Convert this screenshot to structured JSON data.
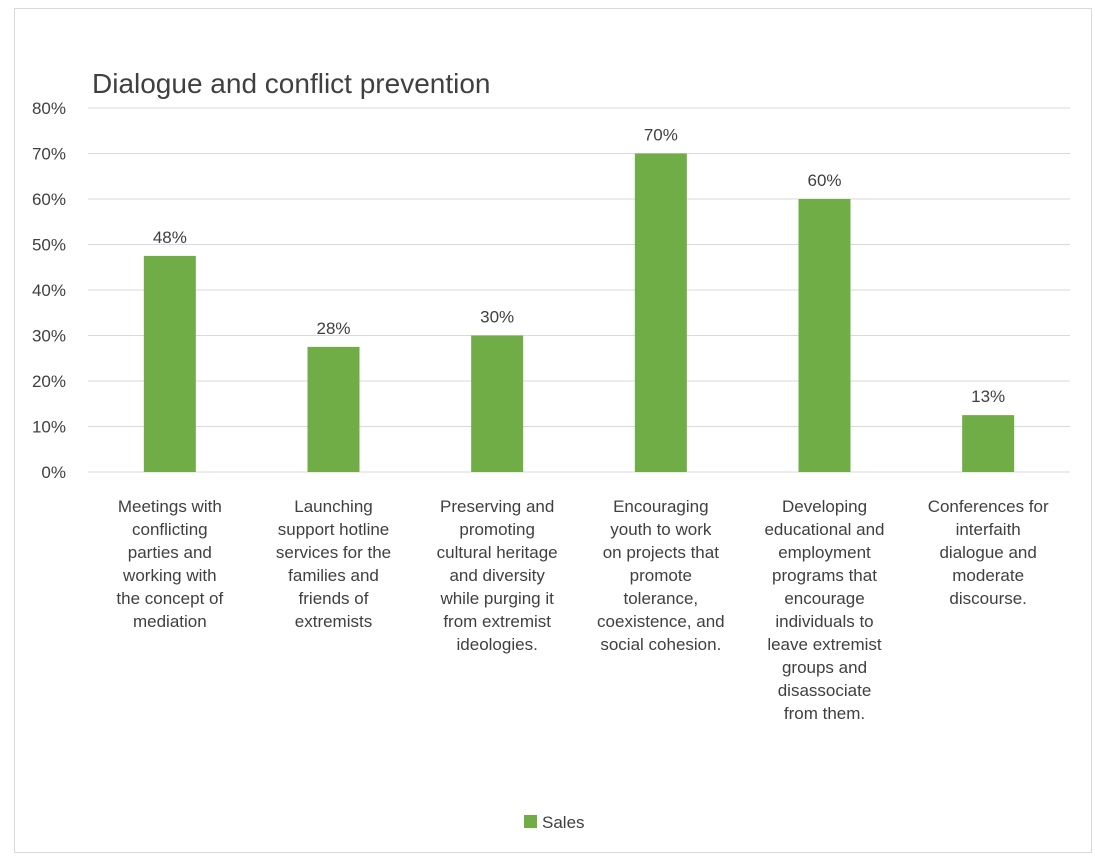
{
  "chart_data": {
    "type": "bar",
    "title": "Dialogue and conflict prevention",
    "categories": [
      "Meetings with conflicting parties and working with the concept of mediation",
      "Launching support hotline services for the families and friends of extremists",
      "Preserving and promoting cultural heritage and diversity while purging it from extremist ideologies.",
      "Encouraging youth to work on projects that promote tolerance, coexistence, and social cohesion.",
      "Developing educational and employment programs that encourage individuals to leave extremist groups and disassociate from them.",
      "Conferences for interfaith dialogue and moderate discourse."
    ],
    "category_lines": [
      [
        "Meetings with",
        "conflicting",
        "parties and",
        "working with",
        "the concept of",
        "mediation"
      ],
      [
        "Launching",
        "support hotline",
        "services for the",
        "families and",
        "friends of",
        "extremists"
      ],
      [
        "Preserving and",
        "promoting",
        "cultural heritage",
        "and diversity",
        "while purging it",
        "from extremist",
        "ideologies."
      ],
      [
        "Encouraging",
        "youth to work",
        "on projects that",
        "promote",
        "tolerance,",
        "coexistence, and",
        "social cohesion."
      ],
      [
        "Developing",
        "educational and",
        "employment",
        "programs that",
        "encourage",
        "individuals to",
        "leave extremist",
        "groups and",
        "disassociate",
        "from them."
      ],
      [
        "Conferences for",
        "interfaith",
        "dialogue and",
        "moderate",
        "discourse."
      ]
    ],
    "series": [
      {
        "name": "Sales",
        "values": [
          0.475,
          0.275,
          0.3,
          0.7,
          0.6,
          0.125
        ],
        "data_labels": [
          "48%",
          "28%",
          "30%",
          "70%",
          "60%",
          "13%"
        ],
        "color": "#70ad47"
      }
    ],
    "ylim": [
      0,
      0.8
    ],
    "yticks": [
      "0%",
      "10%",
      "20%",
      "30%",
      "40%",
      "50%",
      "60%",
      "70%",
      "80%"
    ],
    "grid": true,
    "legend_position": "bottom",
    "gridline_color": "#d9d9d9"
  }
}
